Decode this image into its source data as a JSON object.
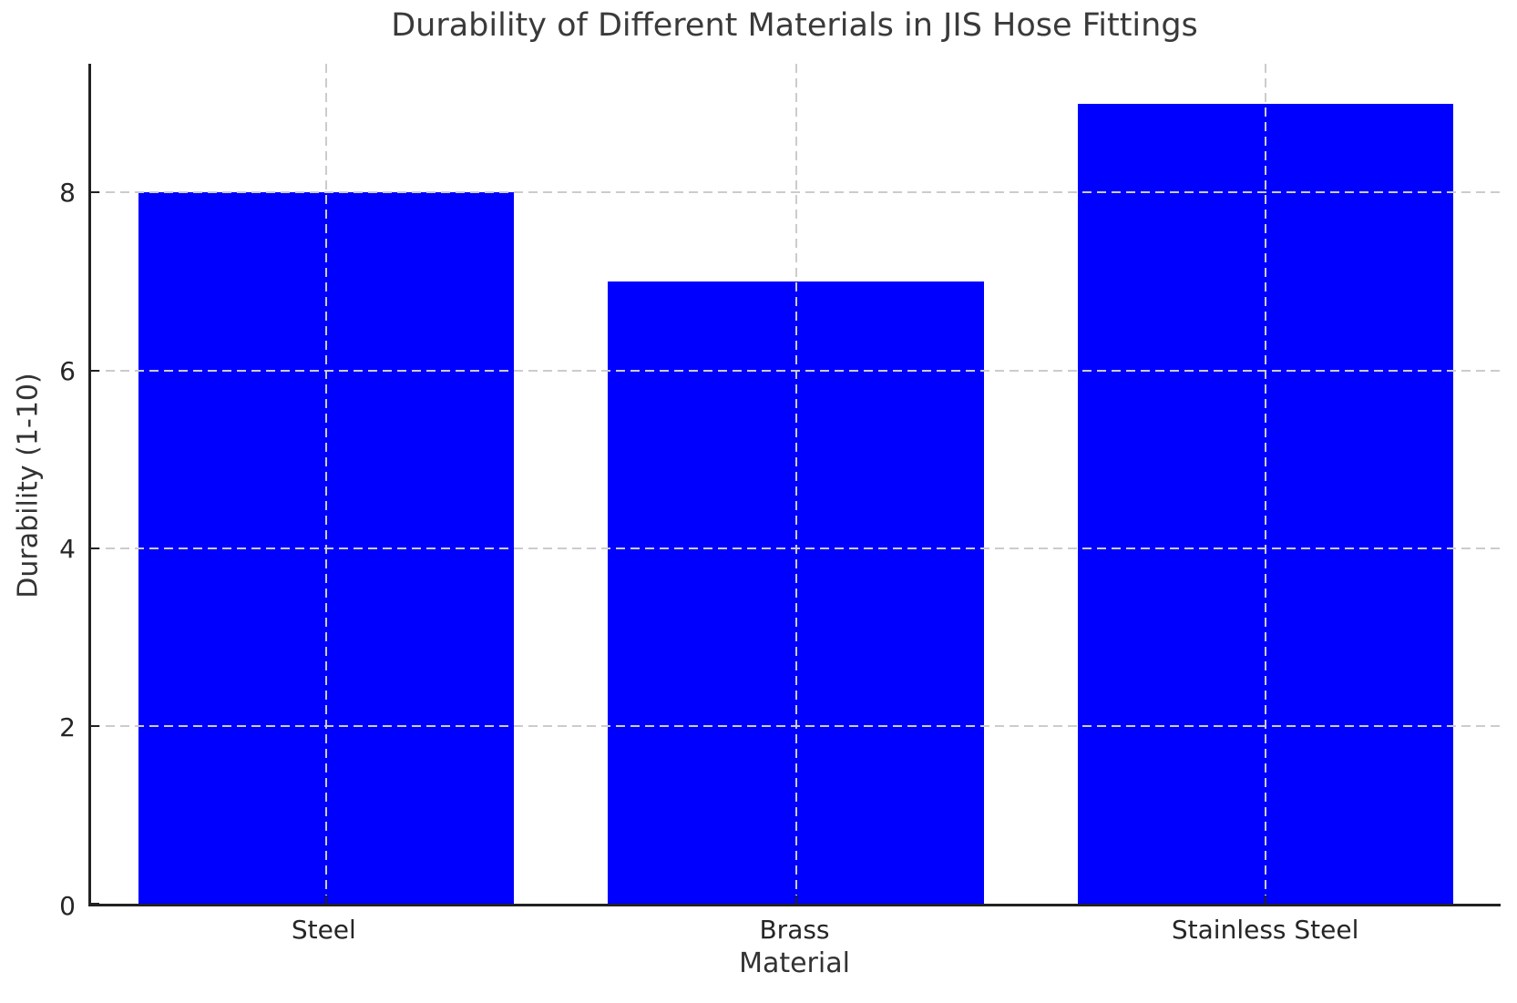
{
  "page": {
    "background_color": "#ffffff"
  },
  "chart_data": {
    "type": "bar",
    "title": "Durability of Different Materials in JIS Hose Fittings",
    "xlabel": "Material",
    "ylabel": "Durability (1-10)",
    "categories": [
      "Steel",
      "Brass",
      "Stainless Steel"
    ],
    "values": [
      8,
      7,
      9
    ],
    "ylim": [
      0,
      9.45
    ],
    "yticks": [
      0,
      2,
      4,
      6,
      8
    ],
    "ytick_labels": [
      "0",
      "2",
      "4",
      "6",
      "8"
    ],
    "bar_color": "#0000ff",
    "bar_width_fraction": 0.8,
    "grid": {
      "visible": true,
      "style": "dashed",
      "color": "#cccccc",
      "axisbelow": false
    },
    "axis_color": "#222222",
    "tick_direction": "in",
    "legend": null
  }
}
